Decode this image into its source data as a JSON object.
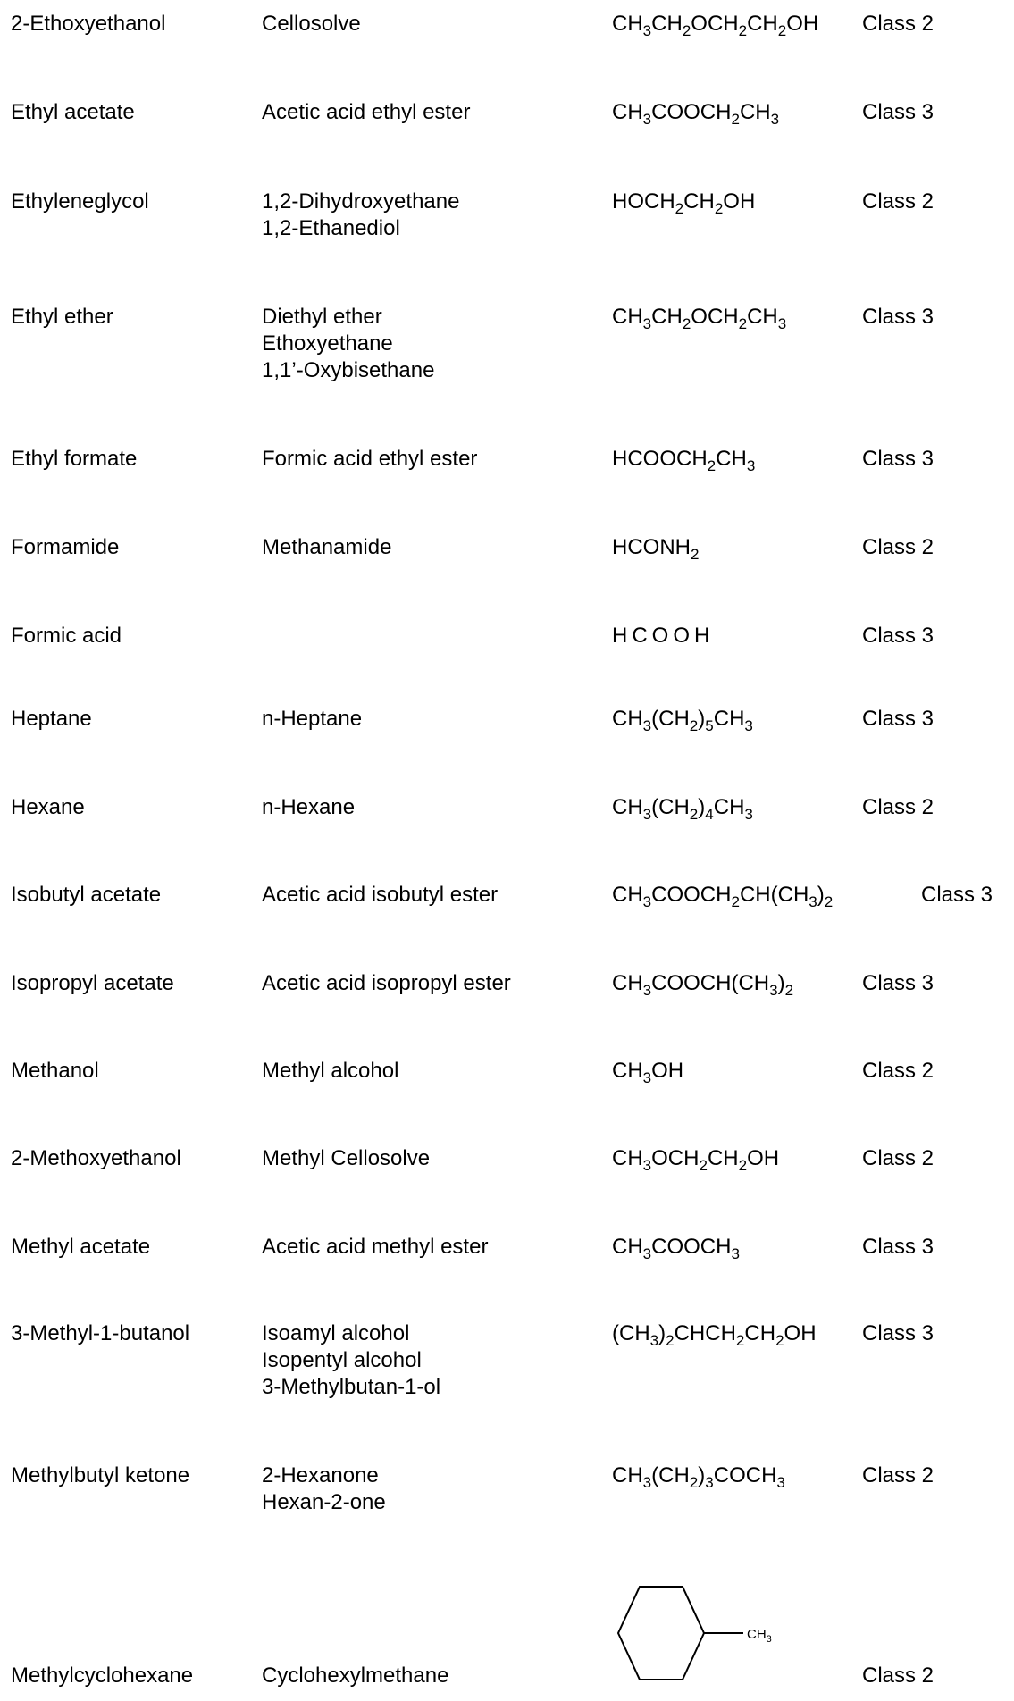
{
  "rows": [
    {
      "name": "2-Ethoxyethanol",
      "synonyms": [
        "Cellosolve"
      ],
      "formula": [
        [
          "CH",
          ""
        ],
        [
          "3",
          "sub"
        ],
        [
          "CH",
          ""
        ],
        [
          "2",
          "sub"
        ],
        [
          "OCH",
          ""
        ],
        [
          "2",
          "sub"
        ],
        [
          "CH",
          ""
        ],
        [
          "2",
          "sub"
        ],
        [
          "OH",
          ""
        ]
      ],
      "formula_text": "CH3CH2OCH2CH2OH",
      "class": "Class 2"
    },
    {
      "name": "Ethyl acetate",
      "synonyms": [
        "Acetic acid ethyl ester"
      ],
      "formula_text": "CH3COOCH2CH3",
      "class": "Class 3"
    },
    {
      "name": "Ethyleneglycol",
      "synonyms": [
        "1,2-Dihydroxyethane",
        "1,2-Ethanediol"
      ],
      "formula_text": "HOCH2CH2OH",
      "class": "Class 2"
    },
    {
      "name": "Ethyl ether",
      "synonyms": [
        "Diethyl ether",
        "Ethoxyethane",
        "1,1’-Oxybisethane"
      ],
      "formula_text": "CH3CH2OCH2CH3",
      "class": "Class 3"
    },
    {
      "name": "Ethyl formate",
      "synonyms": [
        "Formic acid ethyl ester"
      ],
      "formula_text": "HCOOCH2CH3",
      "class": "Class 3"
    },
    {
      "name": "Formamide",
      "synonyms": [
        "Methanamide"
      ],
      "formula_text": "HCONH2",
      "class": "Class 2"
    },
    {
      "name": "Formic acid",
      "synonyms": [],
      "formula_text": "HCOOH",
      "class": "Class 3"
    },
    {
      "name": "Heptane",
      "synonyms": [
        "n-Heptane"
      ],
      "formula_text": "CH3(CH2)5CH3",
      "class": "Class 3"
    },
    {
      "name": "Hexane",
      "synonyms": [
        "n-Hexane"
      ],
      "formula_text": "CH3(CH2)4CH3",
      "class": "Class 2"
    },
    {
      "name": "Isobutyl acetate",
      "synonyms": [
        "Acetic acid isobutyl ester"
      ],
      "formula_text": "CH3COOCH2CH(CH3)2",
      "class": "Class 3"
    },
    {
      "name": "Isopropyl acetate",
      "synonyms": [
        "Acetic acid isopropyl ester"
      ],
      "formula_text": "CH3COOCH(CH3)2",
      "class": "Class 3"
    },
    {
      "name": "Methanol",
      "synonyms": [
        "Methyl alcohol"
      ],
      "formula_text": "CH3OH",
      "class": "Class 2"
    },
    {
      "name": "2-Methoxyethanol",
      "synonyms": [
        "Methyl Cellosolve"
      ],
      "formula_text": "CH3OCH2CH2OH",
      "class": "Class 2"
    },
    {
      "name": "Methyl acetate",
      "synonyms": [
        "Acetic acid methyl ester"
      ],
      "formula_text": "CH3COOCH3",
      "class": "Class 3"
    },
    {
      "name": "3-Methyl-1-butanol",
      "synonyms": [
        "Isoamyl alcohol",
        "Isopentyl alcohol",
        "3-Methylbutan-1-ol"
      ],
      "formula_text": "(CH3)2CHCH2CH2OH",
      "class": "Class 3"
    },
    {
      "name": "Methylbutyl ketone",
      "synonyms": [
        "2-Hexanone",
        "Hexan-2-one"
      ],
      "formula_text": "CH3(CH2)3COCH3",
      "class": "Class 2"
    },
    {
      "name": "Methylcyclohexane",
      "synonyms": [
        "Cyclohexylmethane"
      ],
      "formula_text": "",
      "structure_label": "CH3",
      "class": "Class 2"
    }
  ]
}
